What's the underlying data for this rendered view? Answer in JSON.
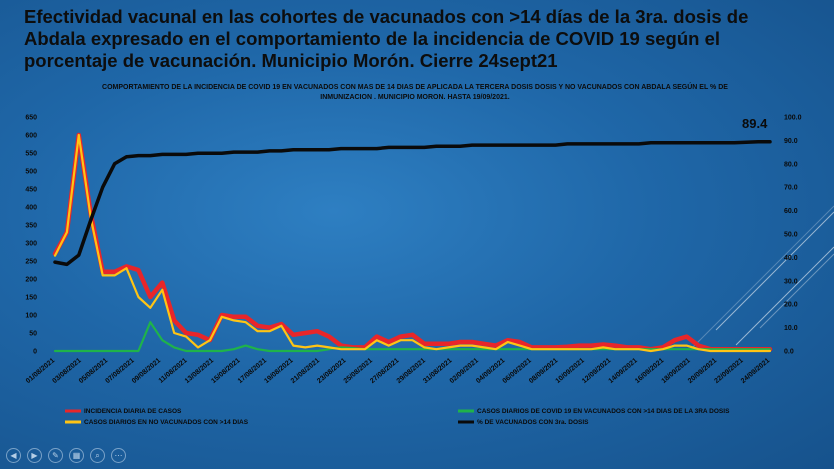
{
  "slide": {
    "title": "Efectividad vacunal en las cohortes de vacunados con >14 días de la 3ra. dosis de Abdala expresado en el comportamiento de la incidencia de COVID 19 según el porcentaje de vacunación. Municipio Morón. Cierre 24sept21"
  },
  "nav": {
    "buttons": [
      {
        "name": "previous-slide-button",
        "glyph": "◀"
      },
      {
        "name": "next-slide-button",
        "glyph": "▶"
      },
      {
        "name": "pen-tool-button",
        "glyph": "✎"
      },
      {
        "name": "see-all-slides-button",
        "glyph": "▦"
      },
      {
        "name": "zoom-button",
        "glyph": "⌕"
      },
      {
        "name": "more-options-button",
        "glyph": "⋯"
      }
    ]
  },
  "chart_data": {
    "type": "line",
    "title": "COMPORTAMIENTO DE LA INCIDENCIA DE COVID 19 EN VACUNADOS CON MAS DE 14 DIAS DE APLICADA LA TERCERA DOSIS DOSIS Y NO VACUNADOS CON ABDALA SEGÚN EL % DE INMUNIZACION . MUNICIPIO MORON. HASTA 19/09/2021.",
    "ylim": [
      0,
      650
    ],
    "y2lim": [
      0,
      100
    ],
    "yticks": [
      "0",
      "50",
      "100",
      "150",
      "200",
      "250",
      "300",
      "350",
      "400",
      "450",
      "500",
      "550",
      "600",
      "650"
    ],
    "y2ticks": [
      "0.0",
      "10.0",
      "20.0",
      "30.0",
      "40.0",
      "50.0",
      "60.0",
      "70.0",
      "80.0",
      "90.0",
      "100.0"
    ],
    "x_start": "01/08/2021",
    "x_tick_labels": [
      "01/08/2021",
      "03/08/2021",
      "05/08/2021",
      "07/08/2021",
      "09/08/2021",
      "11/08/2021",
      "13/08/2021",
      "15/08/2021",
      "17/08/2021",
      "19/08/2021",
      "21/08/2021",
      "23/08/2021",
      "25/08/2021",
      "27/08/2021",
      "29/08/2021",
      "31/08/2021",
      "02/09/2021",
      "04/09/2021",
      "06/09/2021",
      "08/09/2021",
      "10/09/2021",
      "12/09/2021",
      "14/09/2021",
      "16/09/2021",
      "18/09/2021",
      "20/09/2021",
      "22/09/2021",
      "24/09/2021"
    ],
    "annotation": "89.4",
    "grid": false,
    "legend_position": "bottom",
    "series": [
      {
        "name": "INCIDENCIA DIARIA DE CASOS",
        "color": "#e8262a",
        "axis": "left",
        "values": [
          270,
          330,
          600,
          380,
          220,
          220,
          235,
          225,
          150,
          190,
          85,
          50,
          45,
          30,
          100,
          95,
          95,
          70,
          65,
          75,
          45,
          50,
          55,
          40,
          15,
          10,
          10,
          40,
          25,
          40,
          45,
          20,
          20,
          20,
          25,
          25,
          20,
          15,
          30,
          25,
          10,
          10,
          10,
          12,
          15,
          15,
          18,
          15,
          10,
          10,
          5,
          10,
          30,
          40,
          15,
          5,
          5,
          5,
          5,
          5,
          5
        ]
      },
      {
        "name": "CASOS DIARIOS DE COVID 19 EN VACUNADOS CON >14 DIAS DE LA 3RA DOSIS",
        "color": "#1fb34a",
        "axis": "left",
        "values": [
          0,
          0,
          0,
          0,
          0,
          0,
          0,
          0,
          80,
          30,
          10,
          0,
          0,
          0,
          0,
          5,
          15,
          5,
          0,
          0,
          0,
          0,
          0,
          5,
          10,
          8,
          5,
          5,
          5,
          5,
          5,
          5,
          5,
          5,
          5,
          5,
          5,
          5,
          5,
          5,
          5,
          5,
          5,
          5,
          5,
          5,
          5,
          5,
          5,
          5,
          5,
          5,
          5,
          5,
          5,
          5,
          5,
          5,
          5,
          5,
          5
        ]
      },
      {
        "name": "CASOS DIARIOS EN NO VACUNADOS CON >14 DIAS",
        "color": "#ffc414",
        "axis": "left",
        "values": [
          265,
          330,
          600,
          370,
          210,
          210,
          230,
          150,
          120,
          170,
          50,
          40,
          10,
          30,
          95,
          85,
          80,
          55,
          55,
          70,
          15,
          10,
          15,
          10,
          5,
          5,
          5,
          30,
          15,
          30,
          30,
          10,
          5,
          10,
          15,
          15,
          10,
          5,
          25,
          15,
          5,
          5,
          5,
          5,
          5,
          5,
          10,
          5,
          5,
          5,
          0,
          5,
          15,
          15,
          5,
          0,
          0,
          0,
          0,
          0,
          0
        ]
      },
      {
        "name": "% DE VACUNADOS CON 3ra. DOSIS",
        "color": "#0a0a0a",
        "axis": "right",
        "values": [
          38,
          37,
          41,
          56,
          70,
          80,
          83,
          83.5,
          83.5,
          84,
          84,
          84,
          84.5,
          84.5,
          84.5,
          85,
          85,
          85,
          85.5,
          85.5,
          86,
          86,
          86,
          86,
          86.5,
          86.5,
          86.5,
          86.5,
          87,
          87,
          87,
          87,
          87.5,
          87.5,
          87.5,
          88,
          88,
          88,
          88,
          88,
          88,
          88,
          88,
          88.5,
          88.5,
          88.5,
          88.5,
          88.5,
          88.5,
          88.5,
          89,
          89,
          89,
          89,
          89,
          89,
          89,
          89,
          89.2,
          89.4,
          89.4
        ]
      }
    ]
  }
}
